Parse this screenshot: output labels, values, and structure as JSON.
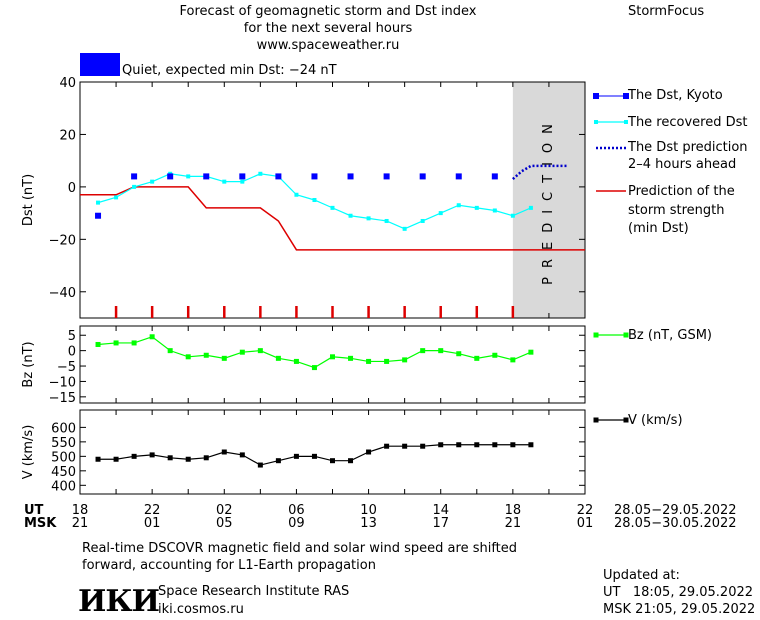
{
  "header": {
    "title_line1": "Forecast of geomagnetic storm and Dst index",
    "title_line2": "for the next several hours",
    "site": "www.spaceweather.ru",
    "brand": "StormFocus",
    "status_text": "Quiet, expected min Dst: −24 nT",
    "status_color": "#0000ff"
  },
  "legend": {
    "dst_kyoto": "The Dst, Kyoto",
    "dst_recovered": "The recovered Dst",
    "dst_prediction_l1": "The Dst prediction",
    "dst_prediction_l2": "2–4 hours ahead",
    "storm_l1": "Prediction of the",
    "storm_l2": "storm strength",
    "storm_l3": "(min Dst)",
    "bz": "Bz (nT, GSM)",
    "v": "V (km/s)"
  },
  "prediction_label": "PREDICTION",
  "time_axis": {
    "ut_label": "UT",
    "msk_label": "MSK",
    "ut_ticks": [
      "18",
      "22",
      "02",
      "06",
      "10",
      "14",
      "18",
      "22"
    ],
    "msk_ticks": [
      "21",
      "01",
      "05",
      "09",
      "13",
      "17",
      "21",
      "01"
    ],
    "ut_range": "28.05−29.05.2022",
    "msk_range": "28.05−30.05.2022"
  },
  "footer": {
    "note_line1": "Real-time DSCOVR magnetic field and solar wind speed are shifted",
    "note_line2": "forward, accounting for L1-Earth propagation",
    "logo": "ИКИ",
    "institute": "Space Research Institute RAS",
    "institute_url": "iki.cosmos.ru",
    "updated_label": "Updated at:",
    "updated_ut": "UT   18:05, 29.05.2022",
    "updated_msk": "MSK 21:05, 29.05.2022"
  },
  "colors": {
    "kyoto": "#0000ff",
    "recovered": "#00ffff",
    "prediction": "#0000cc",
    "storm": "#dd0000",
    "bz": "#00ff00",
    "v": "#000000",
    "shade": "#d9d9d9"
  },
  "chart_data": [
    {
      "type": "scatter",
      "name": "dst",
      "ylabel": "Dst (nT)",
      "ylim": [
        -50,
        40
      ],
      "yticks": [
        40,
        20,
        0,
        -20,
        -40
      ],
      "xlim": [
        18,
        46
      ],
      "prediction_start": 42,
      "series": [
        {
          "name": "The Dst, Kyoto",
          "kind": "points",
          "x": [
            19,
            21,
            23,
            25,
            27,
            29,
            31,
            33,
            35,
            37,
            39,
            41
          ],
          "y": [
            -11,
            4,
            4,
            4,
            4,
            4,
            4,
            4,
            4,
            4,
            4,
            4
          ]
        },
        {
          "name": "The recovered Dst",
          "kind": "line-markers",
          "x": [
            19,
            20,
            21,
            22,
            23,
            24,
            25,
            26,
            27,
            28,
            29,
            30,
            31,
            32,
            33,
            34,
            35,
            36,
            37,
            38,
            39,
            40,
            41,
            42,
            43
          ],
          "y": [
            -6,
            -4,
            0,
            2,
            5,
            4,
            4,
            2,
            2,
            5,
            4,
            -3,
            -5,
            -8,
            -11,
            -12,
            -13,
            -16,
            -13,
            -10,
            -7,
            -8,
            -9,
            -11,
            -8
          ]
        },
        {
          "name": "The Dst prediction",
          "kind": "dotted",
          "x": [
            42,
            42.5,
            43,
            44,
            45
          ],
          "y": [
            3,
            6,
            8,
            8,
            8
          ]
        },
        {
          "name": "Prediction of the storm strength",
          "kind": "step",
          "x": [
            18,
            20,
            21,
            24,
            25,
            28,
            29,
            30,
            46
          ],
          "y": [
            -3,
            -3,
            0,
            0,
            -8,
            -8,
            -13,
            -24,
            -24
          ]
        }
      ]
    },
    {
      "type": "line",
      "name": "bz",
      "ylabel": "Bz (nT)",
      "ylim": [
        -17,
        8
      ],
      "yticks": [
        5,
        0,
        -5,
        -10,
        -15
      ],
      "xlim": [
        18,
        46
      ],
      "series": [
        {
          "name": "Bz (nT, GSM)",
          "x": [
            19,
            20,
            21,
            22,
            23,
            24,
            25,
            26,
            27,
            28,
            29,
            30,
            31,
            32,
            33,
            34,
            35,
            36,
            37,
            38,
            39,
            40,
            41,
            42,
            43
          ],
          "y": [
            2,
            2.5,
            2.5,
            4.5,
            0,
            -2,
            -1.5,
            -2.5,
            -0.5,
            0,
            -2.5,
            -3.5,
            -5.5,
            -2,
            -2.5,
            -3.5,
            -3.5,
            -3,
            0,
            0,
            -1,
            -2.5,
            -1.5,
            -3,
            -0.5
          ]
        }
      ]
    },
    {
      "type": "line",
      "name": "v",
      "ylabel": "V (km/s)",
      "ylim": [
        370,
        660
      ],
      "yticks": [
        600,
        550,
        500,
        450,
        400
      ],
      "xlim": [
        18,
        46
      ],
      "series": [
        {
          "name": "V (km/s)",
          "x": [
            19,
            20,
            21,
            22,
            23,
            24,
            25,
            26,
            27,
            28,
            29,
            30,
            31,
            32,
            33,
            34,
            35,
            36,
            37,
            38,
            39,
            40,
            41,
            42,
            43
          ],
          "y": [
            490,
            490,
            500,
            505,
            495,
            490,
            495,
            515,
            505,
            470,
            485,
            500,
            500,
            485,
            485,
            515,
            535,
            535,
            535,
            540,
            540,
            540,
            540,
            540,
            540
          ]
        }
      ]
    }
  ]
}
